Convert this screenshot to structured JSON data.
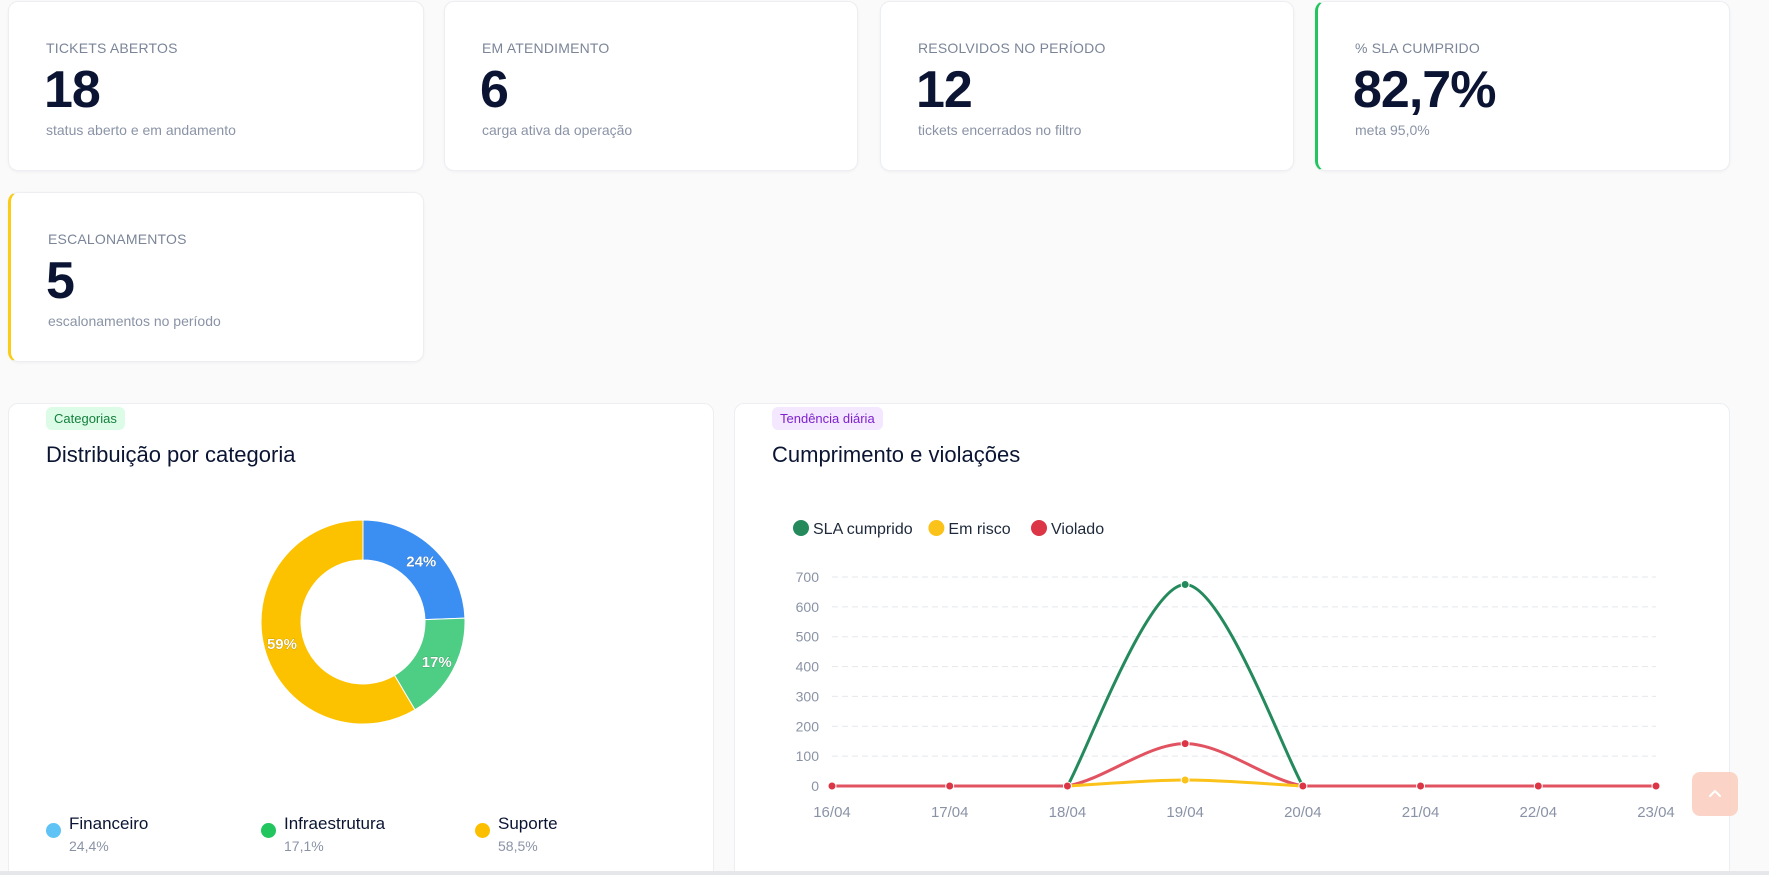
{
  "kpis": [
    {
      "label": "TICKETS ABERTOS",
      "value": "18",
      "sub": "status aberto e em andamento"
    },
    {
      "label": "EM ATENDIMENTO",
      "value": "6",
      "sub": "carga ativa da operação"
    },
    {
      "label": "RESOLVIDOS NO PERÍODO",
      "value": "12",
      "sub": "tickets encerrados no filtro"
    },
    {
      "label": "% SLA CUMPRIDO",
      "value": "82,7%",
      "sub": "meta 95,0%",
      "accent": "#22c55e"
    },
    {
      "label": "ESCALONAMENTOS",
      "value": "5",
      "sub": "escalonamentos no período",
      "accent": "#facc15"
    }
  ],
  "category_panel": {
    "tag": "Categorias",
    "title": "Distribuição por categoria",
    "legend": [
      {
        "name": "Financeiro",
        "pct": "24,4%",
        "color": "#60c3f5"
      },
      {
        "name": "Infraestrutura",
        "pct": "17,1%",
        "color": "#22c55e"
      },
      {
        "name": "Suporte",
        "pct": "58,5%",
        "color": "#fcbf00"
      }
    ]
  },
  "trend_panel": {
    "tag": "Tendência diária",
    "title": "Cumprimento e violações"
  },
  "chart_data": [
    {
      "type": "pie",
      "variant": "donut",
      "labels": [
        "Financeiro",
        "Infraestrutura",
        "Suporte"
      ],
      "values": [
        24.4,
        17.1,
        58.5
      ],
      "slice_labels": [
        "24%",
        "17%",
        "59%"
      ],
      "colors": [
        "#3b8ff3",
        "#4ecd84",
        "#fcc200"
      ]
    },
    {
      "type": "line",
      "categories": [
        "16/04",
        "17/04",
        "18/04",
        "19/04",
        "20/04",
        "21/04",
        "22/04",
        "23/04"
      ],
      "series": [
        {
          "name": "SLA cumprido",
          "values": [
            null,
            null,
            0,
            675,
            0,
            null,
            null,
            null
          ],
          "color": "#248a5c"
        },
        {
          "name": "Em risco",
          "values": [
            null,
            null,
            0,
            20,
            0,
            null,
            null,
            null
          ],
          "color": "#fbc21a"
        },
        {
          "name": "Violado",
          "values": [
            0,
            0,
            0,
            142,
            0,
            0,
            0,
            0
          ],
          "color": "#dc3545"
        }
      ],
      "ylim": [
        0,
        700
      ],
      "yticks": [
        "0",
        "100",
        "200",
        "300",
        "400",
        "500",
        "600",
        "700"
      ],
      "grid": true,
      "legend_position": "top-left"
    }
  ]
}
